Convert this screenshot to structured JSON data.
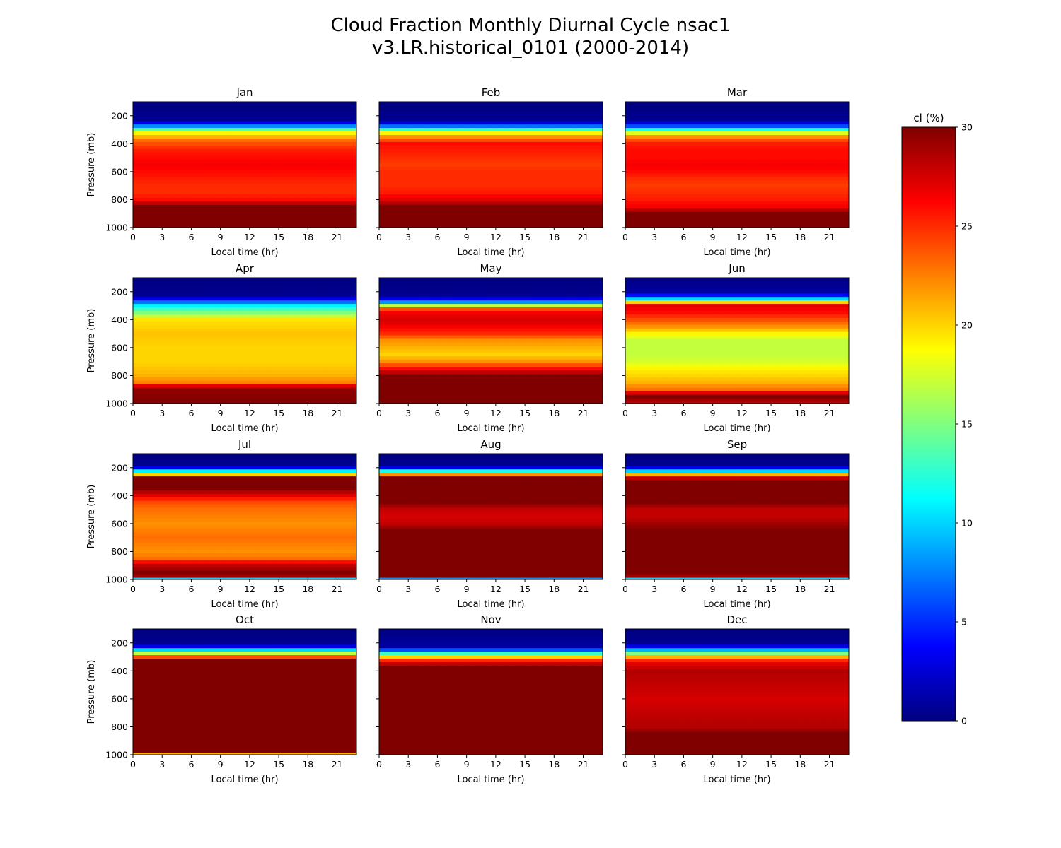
{
  "figure": {
    "title_line1": "Cloud Fraction Monthly Diurnal Cycle nsac1",
    "title_line2": "v3.LR.historical_0101 (2000-2014)"
  },
  "chart_data": {
    "type": "heatmap",
    "colormap": "jet",
    "xlabel": "Local time (hr)",
    "ylabel": "Pressure (mb)",
    "xlim": [
      0,
      23
    ],
    "ylim": [
      1000,
      100
    ],
    "x_ticks": [
      0,
      3,
      6,
      9,
      12,
      15,
      18,
      21
    ],
    "y_ticks": [
      200,
      400,
      600,
      800,
      1000
    ],
    "x_hours": [
      0,
      1,
      2,
      3,
      4,
      5,
      6,
      7,
      8,
      9,
      10,
      11,
      12,
      13,
      14,
      15,
      16,
      17,
      18,
      19,
      20,
      21,
      22
    ],
    "pressure_levels": [
      100,
      125,
      150,
      175,
      200,
      225,
      250,
      275,
      300,
      325,
      350,
      375,
      400,
      425,
      450,
      475,
      500,
      525,
      550,
      575,
      600,
      625,
      650,
      675,
      700,
      725,
      750,
      775,
      800,
      825,
      850,
      875,
      900,
      925,
      950,
      975,
      1000
    ],
    "colorbar": {
      "label": "cl (%)",
      "min": 0,
      "max": 30,
      "ticks": [
        0,
        5,
        10,
        15,
        20,
        25,
        30
      ]
    },
    "panels": [
      {
        "month": "Jan",
        "profile": [
          [
            100,
            0
          ],
          [
            225,
            0.5
          ],
          [
            250,
            3
          ],
          [
            275,
            8
          ],
          [
            300,
            14
          ],
          [
            325,
            19
          ],
          [
            350,
            21
          ],
          [
            375,
            23
          ],
          [
            400,
            24
          ],
          [
            450,
            25.5
          ],
          [
            500,
            26
          ],
          [
            550,
            26.5
          ],
          [
            600,
            26
          ],
          [
            650,
            25.5
          ],
          [
            700,
            25
          ],
          [
            750,
            25
          ],
          [
            800,
            26
          ],
          [
            850,
            30
          ],
          [
            1000,
            30
          ]
        ]
      },
      {
        "month": "Feb",
        "profile": [
          [
            100,
            0
          ],
          [
            225,
            0.5
          ],
          [
            250,
            2.5
          ],
          [
            275,
            7
          ],
          [
            300,
            13
          ],
          [
            325,
            19
          ],
          [
            350,
            22
          ],
          [
            375,
            24
          ],
          [
            400,
            26
          ],
          [
            450,
            25.5
          ],
          [
            500,
            25
          ],
          [
            550,
            24.5
          ],
          [
            600,
            25
          ],
          [
            650,
            25
          ],
          [
            700,
            25
          ],
          [
            750,
            25.5
          ],
          [
            800,
            27
          ],
          [
            850,
            30
          ],
          [
            1000,
            30
          ]
        ]
      },
      {
        "month": "Mar",
        "profile": [
          [
            100,
            0
          ],
          [
            225,
            0.5
          ],
          [
            250,
            2.5
          ],
          [
            275,
            6
          ],
          [
            300,
            12
          ],
          [
            325,
            18
          ],
          [
            350,
            22
          ],
          [
            375,
            24
          ],
          [
            400,
            25.5
          ],
          [
            450,
            26
          ],
          [
            500,
            26
          ],
          [
            550,
            26.5
          ],
          [
            600,
            26
          ],
          [
            650,
            25
          ],
          [
            700,
            24.5
          ],
          [
            750,
            25
          ],
          [
            800,
            25.5
          ],
          [
            850,
            26.5
          ],
          [
            900,
            30
          ],
          [
            1000,
            30
          ]
        ]
      },
      {
        "month": "Apr",
        "profile": [
          [
            100,
            0
          ],
          [
            225,
            0.5
          ],
          [
            250,
            3
          ],
          [
            275,
            7
          ],
          [
            300,
            11
          ],
          [
            325,
            13
          ],
          [
            350,
            15
          ],
          [
            375,
            17
          ],
          [
            400,
            19.5
          ],
          [
            500,
            20.5
          ],
          [
            600,
            20
          ],
          [
            700,
            20
          ],
          [
            800,
            21
          ],
          [
            850,
            22.5
          ],
          [
            875,
            27
          ],
          [
            900,
            29.5
          ],
          [
            1000,
            30
          ]
        ]
      },
      {
        "month": "May",
        "profile": [
          [
            100,
            0
          ],
          [
            225,
            0.5
          ],
          [
            250,
            3
          ],
          [
            275,
            8
          ],
          [
            300,
            17
          ],
          [
            325,
            24
          ],
          [
            350,
            26.5
          ],
          [
            400,
            27.5
          ],
          [
            450,
            26.5
          ],
          [
            500,
            25
          ],
          [
            550,
            22
          ],
          [
            600,
            21
          ],
          [
            650,
            20
          ],
          [
            700,
            22
          ],
          [
            750,
            26
          ],
          [
            800,
            30
          ],
          [
            1000,
            30
          ]
        ]
      },
      {
        "month": "Jun",
        "profile": [
          [
            100,
            0
          ],
          [
            200,
            1
          ],
          [
            225,
            4
          ],
          [
            250,
            10
          ],
          [
            275,
            20
          ],
          [
            300,
            27
          ],
          [
            350,
            26
          ],
          [
            400,
            24
          ],
          [
            450,
            22
          ],
          [
            500,
            19
          ],
          [
            550,
            17
          ],
          [
            600,
            17
          ],
          [
            650,
            17
          ],
          [
            700,
            17.5
          ],
          [
            750,
            19
          ],
          [
            800,
            20
          ],
          [
            850,
            21
          ],
          [
            900,
            23
          ],
          [
            925,
            27
          ],
          [
            950,
            30
          ],
          [
            1000,
            28
          ]
        ]
      },
      {
        "month": "Jul",
        "profile": [
          [
            100,
            0
          ],
          [
            175,
            0.5
          ],
          [
            200,
            3
          ],
          [
            225,
            11
          ],
          [
            250,
            20
          ],
          [
            275,
            30
          ],
          [
            350,
            30
          ],
          [
            400,
            27
          ],
          [
            450,
            24
          ],
          [
            500,
            23
          ],
          [
            600,
            22
          ],
          [
            700,
            23
          ],
          [
            800,
            22
          ],
          [
            850,
            23
          ],
          [
            875,
            26
          ],
          [
            900,
            28
          ],
          [
            950,
            30
          ],
          [
            975,
            29
          ],
          [
            1000,
            10
          ]
        ]
      },
      {
        "month": "Aug",
        "profile": [
          [
            100,
            0
          ],
          [
            175,
            0.5
          ],
          [
            200,
            3
          ],
          [
            225,
            12
          ],
          [
            250,
            22
          ],
          [
            275,
            30
          ],
          [
            450,
            30
          ],
          [
            500,
            28
          ],
          [
            550,
            27.5
          ],
          [
            600,
            28
          ],
          [
            650,
            30
          ],
          [
            975,
            30
          ],
          [
            1000,
            8
          ]
        ]
      },
      {
        "month": "Sep",
        "profile": [
          [
            100,
            0
          ],
          [
            175,
            0.5
          ],
          [
            200,
            3
          ],
          [
            225,
            10
          ],
          [
            250,
            21
          ],
          [
            275,
            28
          ],
          [
            300,
            30
          ],
          [
            450,
            30
          ],
          [
            500,
            28
          ],
          [
            550,
            28
          ],
          [
            600,
            29
          ],
          [
            650,
            30
          ],
          [
            950,
            30
          ],
          [
            975,
            29
          ],
          [
            1000,
            10
          ]
        ]
      },
      {
        "month": "Oct",
        "profile": [
          [
            100,
            0
          ],
          [
            200,
            0.5
          ],
          [
            225,
            3
          ],
          [
            250,
            10
          ],
          [
            275,
            17
          ],
          [
            300,
            24
          ],
          [
            325,
            30
          ],
          [
            975,
            30
          ],
          [
            1000,
            21
          ]
        ]
      },
      {
        "month": "Nov",
        "profile": [
          [
            100,
            0
          ],
          [
            225,
            1
          ],
          [
            250,
            6
          ],
          [
            275,
            13
          ],
          [
            300,
            20
          ],
          [
            325,
            25
          ],
          [
            350,
            28
          ],
          [
            375,
            30
          ],
          [
            1000,
            30
          ]
        ]
      },
      {
        "month": "Dec",
        "profile": [
          [
            100,
            0
          ],
          [
            200,
            0.5
          ],
          [
            225,
            3
          ],
          [
            250,
            9
          ],
          [
            275,
            15
          ],
          [
            300,
            21
          ],
          [
            325,
            25
          ],
          [
            350,
            27
          ],
          [
            400,
            28.5
          ],
          [
            500,
            28
          ],
          [
            600,
            27.5
          ],
          [
            700,
            28
          ],
          [
            800,
            28.5
          ],
          [
            850,
            30
          ],
          [
            1000,
            30
          ]
        ]
      }
    ]
  }
}
